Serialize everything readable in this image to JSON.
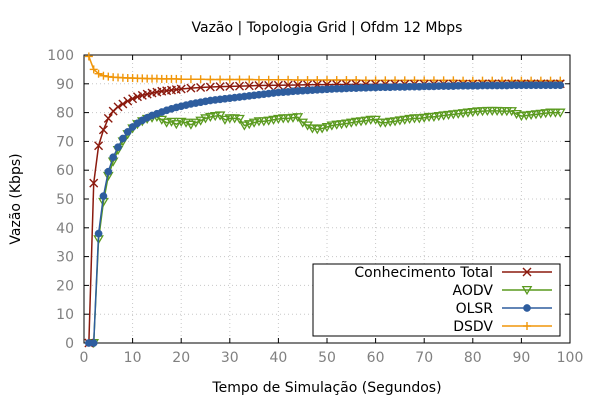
{
  "chart_data": {
    "type": "line",
    "title": "Vazão | Topologia Grid | Ofdm 12 Mbps",
    "xlabel": "Tempo de Simulação (Segundos)",
    "ylabel": "Vazão (Kbps)",
    "xlim": [
      0,
      100
    ],
    "ylim": [
      0,
      100
    ],
    "xticks": [
      0,
      10,
      20,
      30,
      40,
      50,
      60,
      70,
      80,
      90,
      100
    ],
    "yticks": [
      0,
      10,
      20,
      30,
      40,
      50,
      60,
      70,
      80,
      90,
      100
    ],
    "grid": true,
    "legend_position": "bottom-right",
    "series": [
      {
        "name": "Conhecimento Total",
        "color": "#8b1a0e",
        "marker": "x",
        "x": [
          1,
          2,
          3,
          4,
          5,
          6,
          7,
          8,
          9,
          10,
          11,
          12,
          13,
          14,
          15,
          16,
          17,
          18,
          19,
          20,
          22,
          24,
          26,
          28,
          30,
          32,
          34,
          36,
          38,
          40,
          42,
          44,
          46,
          48,
          50,
          52,
          54,
          56,
          58,
          60,
          62,
          64,
          66,
          68,
          70,
          72,
          74,
          76,
          78,
          80,
          82,
          84,
          86,
          88,
          90,
          92,
          94,
          96,
          98
        ],
        "y": [
          0,
          55.5,
          68.5,
          74,
          78,
          80.5,
          82,
          83,
          84,
          84.8,
          85.5,
          86,
          86.4,
          86.8,
          87.1,
          87.4,
          87.6,
          87.8,
          88,
          88.2,
          88.5,
          88.7,
          88.9,
          89,
          89.1,
          89.2,
          89.3,
          89.4,
          89.45,
          89.5,
          89.55,
          89.6,
          89.65,
          89.7,
          89.7,
          89.75,
          89.75,
          89.8,
          89.8,
          89.8,
          89.85,
          89.85,
          89.85,
          89.9,
          89.9,
          89.9,
          89.9,
          89.95,
          89.95,
          89.95,
          90,
          90,
          90,
          90,
          90,
          90,
          90,
          90,
          90
        ]
      },
      {
        "name": "AODV",
        "color": "#5a9a1f",
        "marker": "triangle-down",
        "x": [
          2,
          3,
          4,
          5,
          6,
          7,
          8,
          9,
          10,
          11,
          12,
          13,
          14,
          15,
          16,
          17,
          18,
          19,
          20,
          21,
          22,
          23,
          24,
          25,
          26,
          27,
          28,
          29,
          30,
          31,
          32,
          33,
          34,
          35,
          36,
          37,
          38,
          39,
          40,
          41,
          42,
          43,
          44,
          45,
          46,
          47,
          48,
          49,
          50,
          51,
          52,
          53,
          54,
          55,
          56,
          57,
          58,
          59,
          60,
          61,
          62,
          63,
          64,
          65,
          66,
          67,
          68,
          69,
          70,
          71,
          72,
          73,
          74,
          75,
          76,
          77,
          78,
          79,
          80,
          81,
          82,
          83,
          84,
          85,
          86,
          87,
          88,
          89,
          90,
          91,
          92,
          93,
          94,
          95,
          96,
          97,
          98
        ],
        "y": [
          0,
          36,
          49,
          58,
          63,
          67,
          70,
          72.5,
          74.5,
          76,
          77,
          77.8,
          78.2,
          78.5,
          77.5,
          76.5,
          76.8,
          76,
          76.8,
          76.5,
          75.8,
          76.5,
          77.2,
          78,
          78.5,
          78.8,
          79,
          77.5,
          78,
          78,
          77.8,
          75.5,
          76,
          76.5,
          77,
          77,
          77.2,
          77.5,
          77.8,
          78,
          78,
          78.2,
          78.4,
          76.5,
          75.5,
          74.5,
          74.2,
          74.5,
          75,
          75.5,
          75.8,
          76,
          76.2,
          76.5,
          76.8,
          77,
          77.2,
          77.5,
          77.5,
          76.5,
          76.5,
          76.8,
          77,
          77.3,
          77.5,
          77.8,
          78,
          78,
          78.2,
          78.5,
          78.5,
          78.8,
          79,
          79.2,
          79.4,
          79.6,
          79.8,
          80,
          80.2,
          80.4,
          80.5,
          80.6,
          80.6,
          80.6,
          80.5,
          80.5,
          80.5,
          79.5,
          78.8,
          79,
          79.2,
          79.4,
          79.6,
          79.8,
          80,
          80,
          80
        ]
      },
      {
        "name": "OLSR",
        "color": "#2e5d9e",
        "marker": "circle",
        "x": [
          1,
          2,
          3,
          4,
          5,
          6,
          7,
          8,
          9,
          10,
          11,
          12,
          13,
          14,
          15,
          16,
          17,
          18,
          19,
          20,
          21,
          22,
          23,
          24,
          25,
          26,
          27,
          28,
          29,
          30,
          31,
          32,
          33,
          34,
          35,
          36,
          37,
          38,
          39,
          40,
          41,
          42,
          43,
          44,
          45,
          46,
          47,
          48,
          49,
          50,
          51,
          52,
          53,
          54,
          55,
          56,
          57,
          58,
          59,
          60,
          61,
          62,
          63,
          64,
          65,
          66,
          67,
          68,
          69,
          70,
          71,
          72,
          73,
          74,
          75,
          76,
          77,
          78,
          79,
          80,
          81,
          82,
          83,
          84,
          85,
          86,
          87,
          88,
          89,
          90,
          91,
          92,
          93,
          94,
          95,
          96,
          97,
          98
        ],
        "y": [
          0,
          0,
          38,
          51,
          59.5,
          64.5,
          68,
          71,
          73.3,
          75,
          76.3,
          77.3,
          78.2,
          79,
          79.6,
          80.2,
          80.8,
          81.3,
          81.8,
          82.2,
          82.6,
          83,
          83.3,
          83.6,
          83.9,
          84.2,
          84.4,
          84.6,
          84.8,
          85,
          85.2,
          85.4,
          85.6,
          85.8,
          86,
          86.2,
          86.4,
          86.6,
          86.8,
          87,
          87.1,
          87.2,
          87.4,
          87.5,
          87.6,
          87.7,
          87.8,
          87.9,
          88,
          88.1,
          88.2,
          88.3,
          88.3,
          88.4,
          88.5,
          88.5,
          88.6,
          88.6,
          88.7,
          88.7,
          88.8,
          88.8,
          88.8,
          88.9,
          88.9,
          88.9,
          89,
          89,
          89,
          89.1,
          89.1,
          89.1,
          89.2,
          89.2,
          89.2,
          89.2,
          89.3,
          89.3,
          89.3,
          89.3,
          89.3,
          89.4,
          89.4,
          89.4,
          89.4,
          89.4,
          89.4,
          89.5,
          89.5,
          89.5,
          89.5,
          89.5,
          89.5,
          89.5,
          89.5,
          89.5,
          89.5,
          89.5
        ]
      },
      {
        "name": "DSDV",
        "color": "#f0960a",
        "marker": "plus",
        "x": [
          1,
          2,
          3,
          4,
          5,
          6,
          7,
          8,
          9,
          10,
          11,
          12,
          13,
          14,
          15,
          16,
          17,
          18,
          19,
          20,
          22,
          24,
          26,
          28,
          30,
          32,
          34,
          36,
          38,
          40,
          42,
          44,
          46,
          48,
          50,
          52,
          54,
          56,
          58,
          60,
          62,
          64,
          66,
          68,
          70,
          72,
          74,
          76,
          78,
          80,
          82,
          84,
          86,
          88,
          90,
          92,
          94,
          96,
          98
        ],
        "y": [
          99.5,
          95,
          93.5,
          92.8,
          92.5,
          92.3,
          92.2,
          92.1,
          92,
          92,
          91.9,
          91.9,
          91.8,
          91.8,
          91.8,
          91.7,
          91.7,
          91.7,
          91.7,
          91.6,
          91.6,
          91.6,
          91.5,
          91.5,
          91.5,
          91.5,
          91.5,
          91.4,
          91.4,
          91.4,
          91.4,
          91.3,
          91.3,
          91.3,
          91.3,
          91.3,
          91.3,
          91.3,
          91.2,
          91.2,
          91.2,
          91.2,
          91.2,
          91.2,
          91.2,
          91.2,
          91.2,
          91.2,
          91.1,
          91.1,
          91.1,
          91.1,
          91.1,
          91.1,
          91.1,
          91.1,
          91.1,
          91.1,
          91.1
        ]
      }
    ]
  }
}
